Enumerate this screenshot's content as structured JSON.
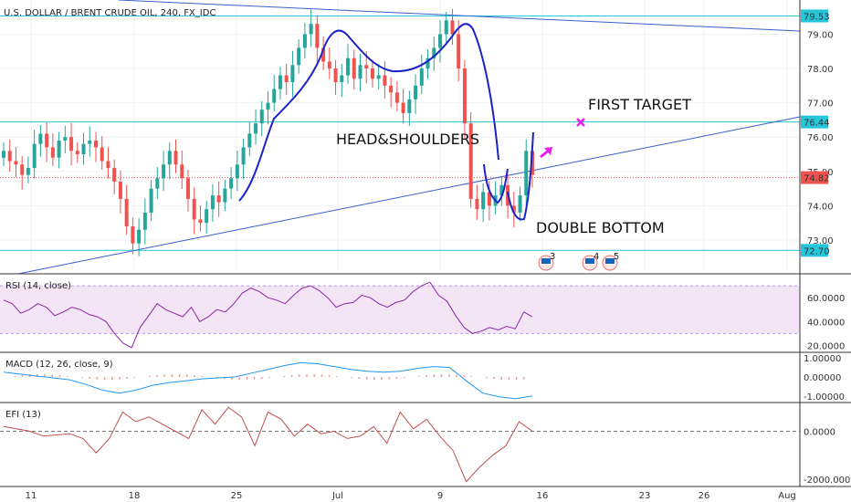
{
  "title": "U.S. DOLLAR / BRENT CRUDE OIL, 240, FX_IDC",
  "chart_data": [
    {
      "type": "candlestick",
      "title": "U.S. DOLLAR / BRENT CRUDE OIL, 240, FX_IDC",
      "x_ticks": [
        "11",
        "18",
        "25",
        "Jul",
        "9",
        "16",
        "23",
        "26",
        "Aug"
      ],
      "y_ticks": [
        "73.00",
        "74.00",
        "75.00",
        "76.00",
        "77.00",
        "78.00",
        "79.00"
      ],
      "ylim": [
        72.35,
        79.9
      ],
      "price_labels": [
        {
          "text": "79.53",
          "value": 79.53,
          "color": "#26c6da"
        },
        {
          "text": "76.44",
          "value": 76.44,
          "color": "#26c6da"
        },
        {
          "text": "74.82",
          "value": 74.82,
          "color": "#ef5350"
        },
        {
          "text": "72.70",
          "value": 72.7,
          "color": "#26c6da"
        }
      ],
      "annotations": [
        {
          "text": "HEAD&SHOULDERS",
          "color": "#111111"
        },
        {
          "text": "FIRST TARGET",
          "color": "#111111"
        },
        {
          "text": "DOUBLE BOTTOM",
          "color": "#111111"
        }
      ],
      "markers": [
        "3",
        "4",
        "5"
      ],
      "colors": {
        "up": "#26a69a",
        "down": "#ef5350",
        "hline": "#26c6da",
        "trend": "#3a5fcd",
        "pattern": "#1a23c8",
        "arrow": "#e91ee9"
      },
      "close_series_approx": [
        75.6,
        75.3,
        75.2,
        74.9,
        75.1,
        75.8,
        76.1,
        75.7,
        75.4,
        75.9,
        76.0,
        75.6,
        75.5,
        75.8,
        75.9,
        75.7,
        75.3,
        75.1,
        74.7,
        74.2,
        73.4,
        72.9,
        73.3,
        73.8,
        74.5,
        74.8,
        75.2,
        75.6,
        75.2,
        74.8,
        74.2,
        73.6,
        73.5,
        73.9,
        74.3,
        74.1,
        74.5,
        74.8,
        75.2,
        75.7,
        76.1,
        76.4,
        76.8,
        77.0,
        77.4,
        77.8,
        77.6,
        78.1,
        78.6,
        79.0,
        79.3,
        78.6,
        78.2,
        78.0,
        77.6,
        77.8,
        78.3,
        77.7,
        78.1,
        78.0,
        77.7,
        77.8,
        77.5,
        77.3,
        77.0,
        76.7,
        77.1,
        77.5,
        78.0,
        78.3,
        78.6,
        79.0,
        79.4,
        79.0,
        78.0,
        76.4,
        74.2,
        73.9,
        74.4,
        74.0,
        74.3,
        74.6,
        74.0,
        73.8,
        74.3,
        75.6,
        74.9
      ]
    },
    {
      "type": "line",
      "title": "RSI (14, close)",
      "y_ticks": [
        "60.0000",
        "40.0000",
        "20.0000"
      ],
      "ylim": [
        15,
        80
      ],
      "band": [
        30,
        70
      ],
      "series": [
        {
          "color": "#8e24aa",
          "values": [
            58,
            55,
            47,
            50,
            55,
            52,
            45,
            48,
            52,
            50,
            46,
            44,
            40,
            30,
            22,
            18,
            35,
            45,
            55,
            50,
            47,
            44,
            52,
            40,
            44,
            50,
            48,
            55,
            64,
            68,
            65,
            60,
            58,
            55,
            62,
            68,
            70,
            66,
            60,
            52,
            55,
            56,
            62,
            60,
            55,
            52,
            56,
            58,
            65,
            70,
            73,
            62,
            57,
            45,
            35,
            30,
            32,
            35,
            33,
            36,
            34,
            48,
            44
          ]
        }
      ]
    },
    {
      "type": "line",
      "title": "MACD (12, 26, close, 9)",
      "y_ticks": [
        "1.00000",
        "0.00000",
        "-1.00000"
      ],
      "ylim": [
        -1.3,
        1.3
      ],
      "series": [
        {
          "color": "#2196f3",
          "values": [
            0.25,
            0.15,
            0.05,
            -0.05,
            -0.15,
            -0.4,
            -0.7,
            -0.85,
            -0.7,
            -0.45,
            -0.3,
            -0.2,
            -0.1,
            -0.05,
            0.0,
            0.2,
            0.4,
            0.6,
            0.75,
            0.7,
            0.55,
            0.4,
            0.3,
            0.25,
            0.3,
            0.45,
            0.55,
            0.5,
            -0.2,
            -0.85,
            -1.05,
            -1.15,
            -1.0
          ]
        }
      ]
    },
    {
      "type": "line",
      "title": "EFI (13)",
      "y_ticks": [
        "0.0000",
        "-2000.0000"
      ],
      "ylim": [
        -2300,
        1200
      ],
      "series": [
        {
          "color": "#c0504d",
          "values": [
            200,
            100,
            0,
            -200,
            -150,
            -100,
            -300,
            -900,
            -300,
            800,
            400,
            600,
            300,
            0,
            -300,
            900,
            300,
            1000,
            600,
            -600,
            800,
            500,
            -200,
            300,
            -100,
            0,
            -300,
            -200,
            200,
            -500,
            800,
            100,
            500,
            -200,
            -800,
            -2100,
            -1500,
            -1000,
            -600,
            400,
            0
          ]
        }
      ]
    }
  ],
  "pane_labels": {
    "rsi": "RSI (14, close)",
    "macd": "MACD (12, 26, close, 9)",
    "efi": "EFI (13)"
  }
}
